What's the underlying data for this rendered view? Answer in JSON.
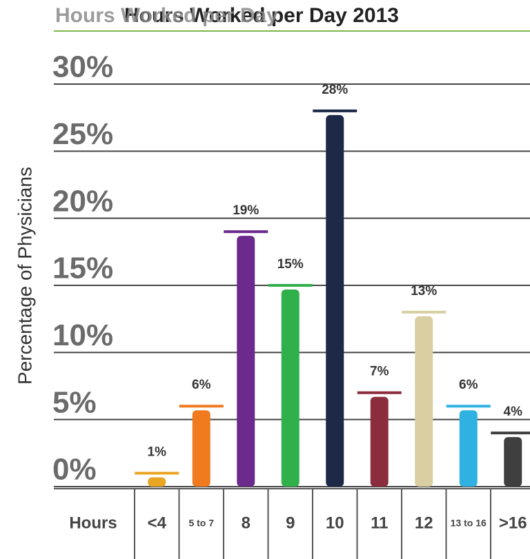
{
  "header_title": "Hours Worked per Day",
  "chart_data": {
    "type": "bar",
    "title": "Hours Worked per Day 2013",
    "y_label": "Percentage of Physicians",
    "x_label": "Hours",
    "categories": [
      "<4",
      "5 to 7",
      "8",
      "9",
      "10",
      "11",
      "12",
      "13 to 16",
      ">16"
    ],
    "values": [
      1,
      6,
      19,
      15,
      28,
      7,
      13,
      6,
      4
    ],
    "value_labels": [
      "1%",
      "6%",
      "19%",
      "15%",
      "28%",
      "7%",
      "13%",
      "6%",
      "4%"
    ],
    "colors": [
      "#e8a623",
      "#f07a1e",
      "#6b2a8c",
      "#2fb04a",
      "#1d2947",
      "#8b2d3d",
      "#d9cfa3",
      "#2fb2e2",
      "#3f3f3f"
    ],
    "ylim": [
      0,
      30
    ],
    "yticks": [
      {
        "value": 0,
        "label": "0%"
      },
      {
        "value": 5,
        "label": "5%"
      },
      {
        "value": 10,
        "label": "10%"
      },
      {
        "value": 15,
        "label": "15%"
      },
      {
        "value": 20,
        "label": "20%"
      },
      {
        "value": 25,
        "label": "25%"
      },
      {
        "value": 30,
        "label": "30%"
      }
    ],
    "grid": true
  }
}
